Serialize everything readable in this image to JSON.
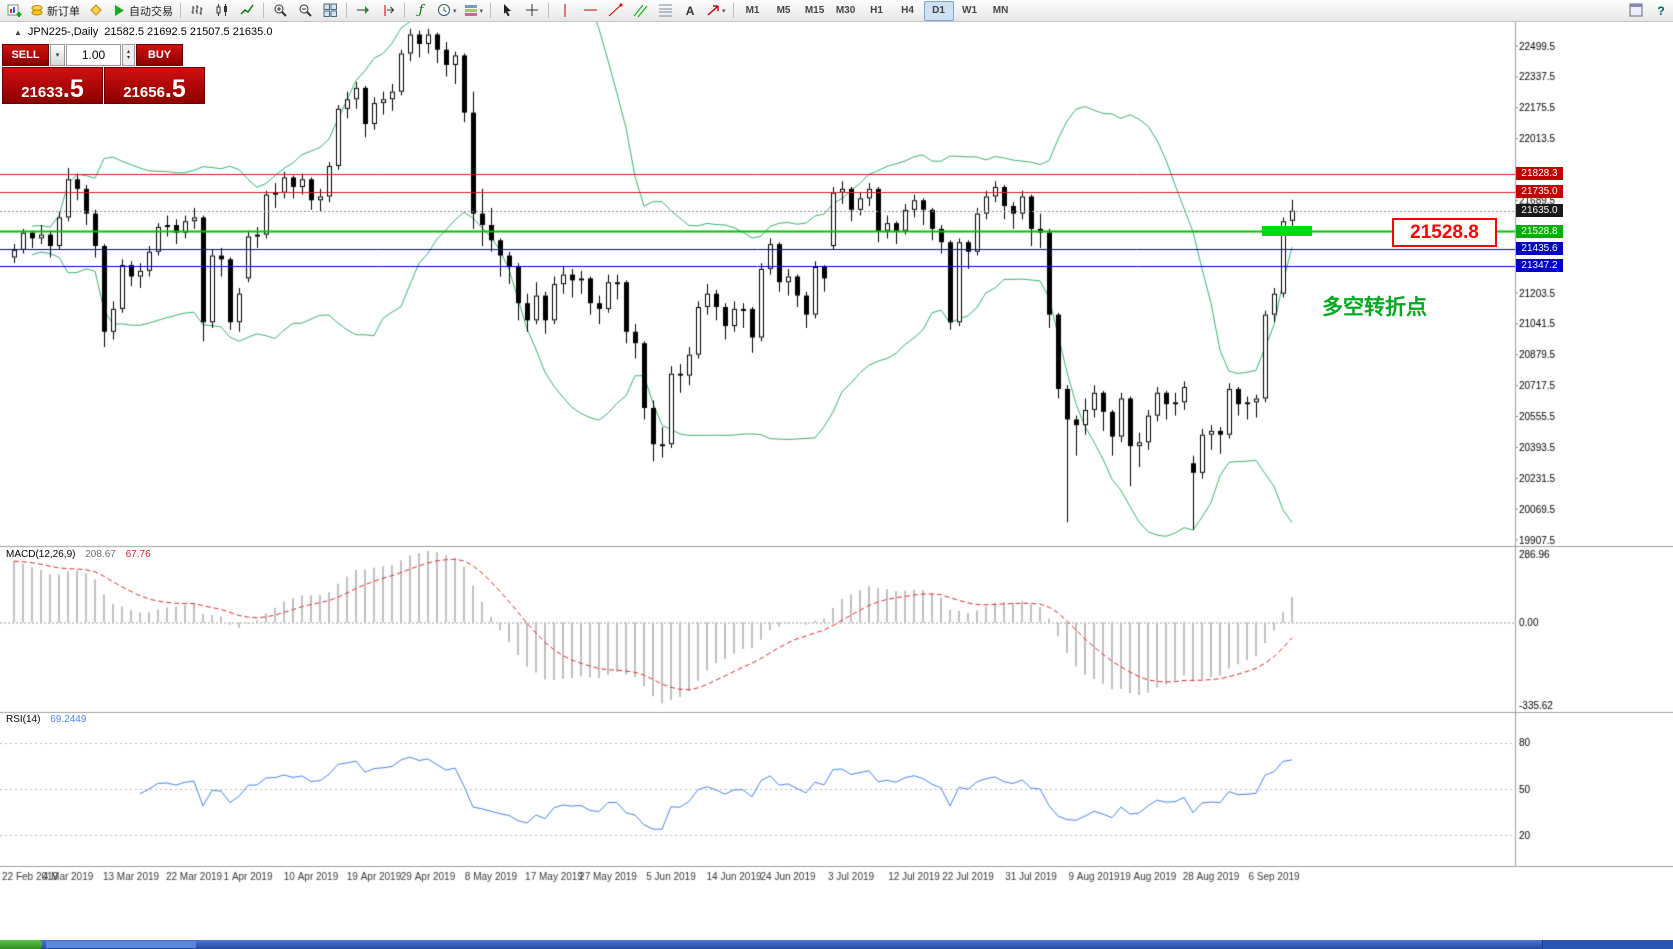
{
  "toolbar": {
    "buttons": [
      {
        "name": "new-chart-button",
        "icon": "new-chart"
      },
      {
        "name": "new-order-button",
        "icon": "new-order",
        "label": "新订单"
      },
      {
        "name": "metaeditor-button",
        "icon": "metaeditor"
      },
      {
        "name": "autotrading-button",
        "icon": "play",
        "label": "自动交易"
      },
      {
        "sep": true
      },
      {
        "name": "bar-chart-button",
        "icon": "bars"
      },
      {
        "name": "candle-chart-button",
        "icon": "candles"
      },
      {
        "name": "line-chart-button",
        "icon": "line"
      },
      {
        "sep": true
      },
      {
        "name": "zoom-in-button",
        "icon": "zoom-in"
      },
      {
        "name": "zoom-out-button",
        "icon": "zoom-out"
      },
      {
        "name": "tile-windows-button",
        "icon": "tile"
      },
      {
        "sep": true
      },
      {
        "name": "auto-scroll-button",
        "icon": "autoscroll"
      },
      {
        "name": "chart-shift-button",
        "icon": "shift"
      },
      {
        "sep": true
      },
      {
        "name": "indicators-button",
        "icon": "indicators"
      },
      {
        "name": "periods-button",
        "icon": "clock",
        "dd": true
      },
      {
        "name": "templates-button",
        "icon": "template",
        "dd": true
      },
      {
        "sep": true
      },
      {
        "name": "cursor-button",
        "icon": "cursor"
      },
      {
        "name": "crosshair-button",
        "icon": "crosshair"
      },
      {
        "sep": true
      },
      {
        "name": "vertical-line-button",
        "icon": "vline"
      },
      {
        "name": "horizontal-line-button",
        "icon": "hline"
      },
      {
        "name": "trendline-button",
        "icon": "trend"
      },
      {
        "name": "channel-button",
        "icon": "channel"
      },
      {
        "name": "fibonacci-button",
        "icon": "fibo"
      },
      {
        "name": "text-label-button",
        "icon": "text"
      },
      {
        "name": "arrows-button",
        "icon": "arrow",
        "dd": true
      },
      {
        "sep": true
      }
    ],
    "timeframes": [
      "M1",
      "M5",
      "M15",
      "M30",
      "H1",
      "H4",
      "D1",
      "W1",
      "MN"
    ],
    "active_timeframe": "D1",
    "right_buttons": [
      {
        "name": "docking-button",
        "icon": "dock"
      },
      {
        "name": "help-button",
        "icon": "help"
      }
    ]
  },
  "symbol_header": {
    "title": "JPN225-,Daily",
    "ohlc": "21582.5 21692.5 21507.5 21635.0"
  },
  "trade_panel": {
    "sell_label": "SELL",
    "buy_label": "BUY",
    "volume": "1.00",
    "sell_price_main": "21633",
    "sell_price_frac": ".5",
    "buy_price_main": "21656",
    "buy_price_frac": ".5"
  },
  "annotations": {
    "support_price_label": "21528.8",
    "turning_point_text": "多空转折点",
    "support_zone_color": "#00dc00"
  },
  "price_lines": [
    {
      "value": 21828.3,
      "label": "21828.3",
      "color": "#cc2222",
      "tag": "#c00000",
      "style": "solid",
      "width": 1
    },
    {
      "value": 21735.0,
      "label": "21735.0",
      "color": "#cc2222",
      "tag": "#c00000",
      "style": "solid",
      "width": 1
    },
    {
      "value": 21635.0,
      "label": "21635.0",
      "color": "#909090",
      "tag": "#1a1a1a",
      "style": "dot",
      "width": 1
    },
    {
      "value": 21528.8,
      "label": "21528.8",
      "color": "#00c000",
      "tag": "#00b000",
      "style": "solid",
      "width": 2
    },
    {
      "value": 21435.6,
      "label": "21435.6",
      "color": "#0000cc",
      "tag": "#0000c0",
      "style": "solid",
      "width": 1
    },
    {
      "value": 21347.2,
      "label": "21347.2",
      "color": "#0000cc",
      "tag": "#0000c0",
      "style": "solid",
      "width": 1
    }
  ],
  "indicators": {
    "macd": {
      "label": "MACD(12,26,9)",
      "main_value": "208.67",
      "signal_value": "67.76",
      "axis_labels": [
        "286.96",
        "0.00",
        "-335.62"
      ],
      "scale_max": 286.96,
      "scale_min": -335.62
    },
    "rsi": {
      "label": "RSI(14)",
      "value": "69.2449",
      "levels": [
        80,
        50,
        20
      ]
    },
    "bollinger_color": "#3cb371"
  },
  "chart_data": {
    "type": "candlestick",
    "symbol": "JPN225-",
    "timeframe": "Daily",
    "price_range": [
      19907.5,
      22499.5
    ],
    "price_axis_ticks": [
      "22499.5",
      "22337.5",
      "22175.5",
      "22013.5",
      "21689.5",
      "21203.5",
      "21041.5",
      "20879.5",
      "20717.5",
      "20555.5",
      "20393.5",
      "20231.5",
      "20069.5",
      "19907.5"
    ],
    "x_labels": [
      {
        "i": 0,
        "t": "22 Feb 2019"
      },
      {
        "i": 6,
        "t": "4 Mar 2019"
      },
      {
        "i": 13,
        "t": "13 Mar 2019"
      },
      {
        "i": 20,
        "t": "22 Mar 2019"
      },
      {
        "i": 26,
        "t": "1 Apr 2019"
      },
      {
        "i": 33,
        "t": "10 Apr 2019"
      },
      {
        "i": 40,
        "t": "19 Apr 2019"
      },
      {
        "i": 46,
        "t": "29 Apr 2019"
      },
      {
        "i": 53,
        "t": "8 May 2019"
      },
      {
        "i": 60,
        "t": "17 May 2019"
      },
      {
        "i": 66,
        "t": "27 May 2019"
      },
      {
        "i": 73,
        "t": "5 Jun 2019"
      },
      {
        "i": 80,
        "t": "14 Jun 2019"
      },
      {
        "i": 86,
        "t": "24 Jun 2019"
      },
      {
        "i": 93,
        "t": "3 Jul 2019"
      },
      {
        "i": 100,
        "t": "12 Jul 2019"
      },
      {
        "i": 106,
        "t": "22 Jul 2019"
      },
      {
        "i": 113,
        "t": "31 Jul 2019"
      },
      {
        "i": 120,
        "t": "9 Aug 2019"
      },
      {
        "i": 126,
        "t": "19 Aug 2019"
      },
      {
        "i": 133,
        "t": "28 Aug 2019"
      },
      {
        "i": 140,
        "t": "6 Sep 2019"
      }
    ],
    "candles": [
      [
        21390,
        21460,
        21360,
        21430
      ],
      [
        21430,
        21540,
        21410,
        21520
      ],
      [
        21520,
        21530,
        21440,
        21490
      ],
      [
        21490,
        21560,
        21460,
        21510
      ],
      [
        21510,
        21530,
        21390,
        21450
      ],
      [
        21450,
        21630,
        21430,
        21600
      ],
      [
        21600,
        21860,
        21580,
        21800
      ],
      [
        21800,
        21830,
        21690,
        21750
      ],
      [
        21750,
        21770,
        21560,
        21620
      ],
      [
        21620,
        21640,
        21390,
        21450
      ],
      [
        21450,
        21460,
        20920,
        21000
      ],
      [
        21000,
        21160,
        20960,
        21120
      ],
      [
        21120,
        21380,
        21100,
        21350
      ],
      [
        21350,
        21370,
        21240,
        21290
      ],
      [
        21290,
        21360,
        21230,
        21320
      ],
      [
        21320,
        21450,
        21290,
        21420
      ],
      [
        21420,
        21570,
        21400,
        21550
      ],
      [
        21550,
        21610,
        21500,
        21560
      ],
      [
        21560,
        21590,
        21460,
        21520
      ],
      [
        21520,
        21610,
        21490,
        21580
      ],
      [
        21580,
        21650,
        21540,
        21600
      ],
      [
        21600,
        21610,
        20950,
        21050
      ],
      [
        21050,
        21430,
        21020,
        21400
      ],
      [
        21400,
        21440,
        21290,
        21380
      ],
      [
        21380,
        21390,
        21010,
        21050
      ],
      [
        21050,
        21230,
        21000,
        21200
      ],
      [
        21280,
        21530,
        21260,
        21500
      ],
      [
        21500,
        21550,
        21440,
        21510
      ],
      [
        21510,
        21740,
        21490,
        21720
      ],
      [
        21720,
        21780,
        21650,
        21730
      ],
      [
        21730,
        21840,
        21700,
        21810
      ],
      [
        21810,
        21820,
        21700,
        21760
      ],
      [
        21760,
        21830,
        21720,
        21800
      ],
      [
        21800,
        21810,
        21640,
        21690
      ],
      [
        21690,
        21750,
        21630,
        21710
      ],
      [
        21710,
        21890,
        21680,
        21870
      ],
      [
        21870,
        22190,
        21850,
        22170
      ],
      [
        22170,
        22260,
        22120,
        22220
      ],
      [
        22220,
        22310,
        22170,
        22280
      ],
      [
        22280,
        22290,
        22020,
        22090
      ],
      [
        22090,
        22230,
        22060,
        22200
      ],
      [
        22200,
        22260,
        22140,
        22220
      ],
      [
        22220,
        22300,
        22160,
        22260
      ],
      [
        22260,
        22480,
        22240,
        22460
      ],
      [
        22460,
        22590,
        22420,
        22560
      ],
      [
        22560,
        22580,
        22440,
        22510
      ],
      [
        22510,
        22590,
        22460,
        22560
      ],
      [
        22560,
        22570,
        22410,
        22480
      ],
      [
        22480,
        22520,
        22340,
        22400
      ],
      [
        22400,
        22470,
        22300,
        22450
      ],
      [
        22450,
        22460,
        22100,
        22150
      ],
      [
        22150,
        22260,
        21540,
        21620
      ],
      [
        21620,
        21750,
        21450,
        21560
      ],
      [
        21560,
        21650,
        21420,
        21480
      ],
      [
        21480,
        21490,
        21290,
        21400
      ],
      [
        21400,
        21420,
        21250,
        21340
      ],
      [
        21340,
        21360,
        21060,
        21150
      ],
      [
        21150,
        21200,
        21000,
        21060
      ],
      [
        21060,
        21260,
        21040,
        21190
      ],
      [
        21190,
        21210,
        20990,
        21060
      ],
      [
        21060,
        21290,
        21040,
        21250
      ],
      [
        21250,
        21340,
        21200,
        21300
      ],
      [
        21300,
        21330,
        21180,
        21270
      ],
      [
        21270,
        21320,
        21200,
        21280
      ],
      [
        21280,
        21290,
        21090,
        21150
      ],
      [
        21150,
        21190,
        21040,
        21120
      ],
      [
        21120,
        21300,
        21100,
        21260
      ],
      [
        21260,
        21300,
        21170,
        21260
      ],
      [
        21260,
        21270,
        20940,
        21000
      ],
      [
        21000,
        21040,
        20860,
        20940
      ],
      [
        20940,
        20950,
        20540,
        20600
      ],
      [
        20600,
        20640,
        20320,
        20410
      ],
      [
        20410,
        20500,
        20340,
        20410
      ],
      [
        20410,
        20820,
        20390,
        20780
      ],
      [
        20780,
        20830,
        20680,
        20770
      ],
      [
        20770,
        20920,
        20720,
        20880
      ],
      [
        20880,
        21160,
        20860,
        21130
      ],
      [
        21130,
        21250,
        21090,
        21200
      ],
      [
        21200,
        21220,
        21060,
        21130
      ],
      [
        21130,
        21150,
        20960,
        21030
      ],
      [
        21030,
        21160,
        21000,
        21120
      ],
      [
        21120,
        21150,
        21020,
        21120
      ],
      [
        21120,
        21130,
        20890,
        20970
      ],
      [
        20970,
        21360,
        20950,
        21330
      ],
      [
        21330,
        21490,
        21300,
        21460
      ],
      [
        21460,
        21470,
        21210,
        21260
      ],
      [
        21260,
        21330,
        21190,
        21290
      ],
      [
        21290,
        21300,
        21130,
        21190
      ],
      [
        21190,
        21210,
        21020,
        21090
      ],
      [
        21090,
        21370,
        21070,
        21340
      ],
      [
        21340,
        21350,
        21210,
        21280
      ],
      [
        21450,
        21760,
        21430,
        21730
      ],
      [
        21730,
        21790,
        21670,
        21750
      ],
      [
        21750,
        21760,
        21580,
        21640
      ],
      [
        21640,
        21730,
        21610,
        21700
      ],
      [
        21700,
        21780,
        21660,
        21750
      ],
      [
        21750,
        21760,
        21470,
        21530
      ],
      [
        21530,
        21610,
        21490,
        21570
      ],
      [
        21570,
        21580,
        21460,
        21530
      ],
      [
        21530,
        21670,
        21510,
        21640
      ],
      [
        21640,
        21720,
        21600,
        21690
      ],
      [
        21690,
        21700,
        21560,
        21640
      ],
      [
        21640,
        21650,
        21480,
        21540
      ],
      [
        21540,
        21560,
        21410,
        21470
      ],
      [
        21470,
        21480,
        21010,
        21050
      ],
      [
        21050,
        21490,
        21030,
        21470
      ],
      [
        21470,
        21480,
        21330,
        21420
      ],
      [
        21420,
        21650,
        21400,
        21620
      ],
      [
        21620,
        21740,
        21590,
        21710
      ],
      [
        21710,
        21790,
        21680,
        21760
      ],
      [
        21760,
        21770,
        21590,
        21660
      ],
      [
        21660,
        21680,
        21540,
        21620
      ],
      [
        21620,
        21740,
        21590,
        21710
      ],
      [
        21710,
        21720,
        21450,
        21540
      ],
      [
        21540,
        21620,
        21440,
        21520
      ],
      [
        21520,
        21540,
        21020,
        21090
      ],
      [
        21090,
        21100,
        20650,
        20700
      ],
      [
        20700,
        20720,
        20000,
        20540
      ],
      [
        20540,
        20560,
        20350,
        20510
      ],
      [
        20510,
        20650,
        20460,
        20590
      ],
      [
        20590,
        20720,
        20550,
        20680
      ],
      [
        20680,
        20690,
        20480,
        20580
      ],
      [
        20580,
        20590,
        20350,
        20450
      ],
      [
        20450,
        20680,
        20420,
        20650
      ],
      [
        20650,
        20660,
        20190,
        20400
      ],
      [
        20400,
        20470,
        20290,
        20420
      ],
      [
        20420,
        20590,
        20380,
        20560
      ],
      [
        20560,
        20710,
        20530,
        20680
      ],
      [
        20680,
        20690,
        20540,
        20620
      ],
      [
        20620,
        20680,
        20560,
        20630
      ],
      [
        20630,
        20740,
        20590,
        20710
      ],
      [
        20310,
        20350,
        19960,
        20260
      ],
      [
        20260,
        20490,
        20230,
        20460
      ],
      [
        20460,
        20510,
        20380,
        20480
      ],
      [
        20480,
        20500,
        20360,
        20460
      ],
      [
        20460,
        20730,
        20440,
        20700
      ],
      [
        20700,
        20710,
        20560,
        20620
      ],
      [
        20620,
        20660,
        20540,
        20630
      ],
      [
        20630,
        20670,
        20550,
        20650
      ],
      [
        20650,
        21110,
        20630,
        21090
      ],
      [
        21090,
        21230,
        21050,
        21200
      ],
      [
        21200,
        21600,
        21180,
        21580
      ],
      [
        21582.5,
        21692.5,
        21507.5,
        21635.0
      ]
    ]
  }
}
